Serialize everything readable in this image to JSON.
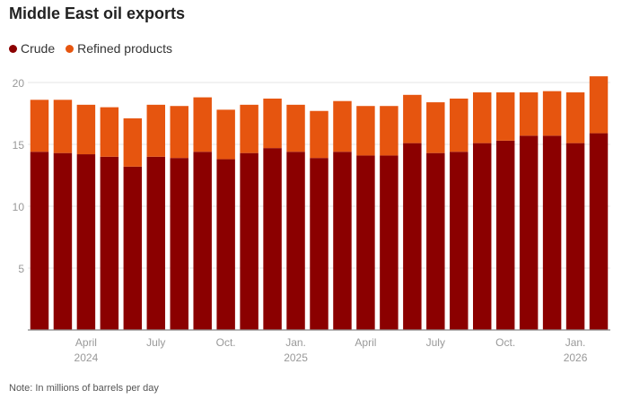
{
  "chart_data": {
    "type": "bar",
    "stacked": true,
    "title": "Middle East oil exports",
    "note": "Note: In millions of barrels per day",
    "categories": [
      "Feb 2024",
      "Mar 2024",
      "Apr 2024",
      "May 2024",
      "Jun 2024",
      "Jul 2024",
      "Aug 2024",
      "Sep 2024",
      "Oct 2024",
      "Nov 2024",
      "Dec 2024",
      "Jan 2025",
      "Feb 2025",
      "Mar 2025",
      "Apr 2025",
      "May 2025",
      "Jun 2025",
      "Jul 2025",
      "Aug 2025",
      "Sep 2025",
      "Oct 2025",
      "Nov 2025",
      "Dec 2025",
      "Jan 2026",
      "Feb 2026"
    ],
    "series": [
      {
        "name": "Crude",
        "color": "#8b0000",
        "values": [
          14.4,
          14.3,
          14.2,
          14.0,
          13.2,
          14.0,
          13.9,
          14.4,
          13.8,
          14.3,
          14.7,
          14.4,
          13.9,
          14.4,
          14.1,
          14.1,
          15.1,
          14.3,
          14.4,
          15.1,
          15.3,
          15.7,
          15.7,
          15.1,
          15.9
        ]
      },
      {
        "name": "Refined products",
        "color": "#e6550f",
        "values": [
          4.2,
          4.3,
          4.0,
          4.0,
          3.9,
          4.2,
          4.2,
          4.4,
          4.0,
          3.9,
          4.0,
          3.8,
          3.8,
          4.1,
          4.0,
          4.0,
          3.9,
          4.1,
          4.3,
          4.1,
          3.9,
          3.5,
          3.6,
          4.1,
          4.6
        ]
      }
    ],
    "ylim": [
      0,
      20
    ],
    "yticks": [
      5,
      10,
      15,
      20
    ],
    "xticks": [
      {
        "index": 2,
        "label": "April",
        "sub": "2024"
      },
      {
        "index": 5,
        "label": "July",
        "sub": ""
      },
      {
        "index": 8,
        "label": "Oct.",
        "sub": ""
      },
      {
        "index": 11,
        "label": "Jan.",
        "sub": "2025"
      },
      {
        "index": 14,
        "label": "April",
        "sub": ""
      },
      {
        "index": 17,
        "label": "July",
        "sub": ""
      },
      {
        "index": 20,
        "label": "Oct.",
        "sub": ""
      },
      {
        "index": 23,
        "label": "Jan.",
        "sub": "2026"
      }
    ],
    "grid": true,
    "legend_position": "top-left"
  }
}
